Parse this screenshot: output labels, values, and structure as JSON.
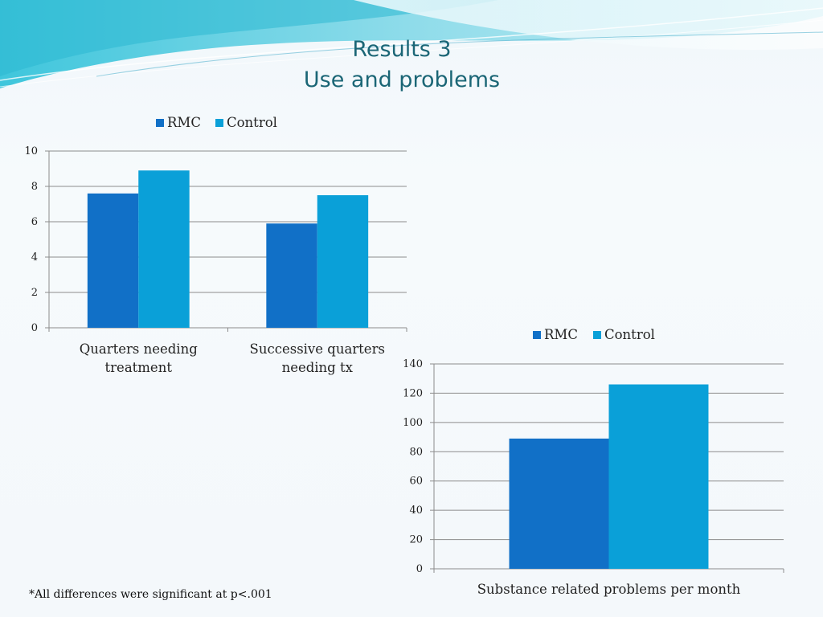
{
  "slide": {
    "title_line1": "Results 3",
    "title_line2": "Use and problems",
    "footnote": "*All differences were significant at p<.001"
  },
  "colors": {
    "rmc": "#1170c7",
    "control": "#0aa0d8",
    "title": "#1b6676",
    "grid": "#8c8c8c"
  },
  "chart_data": [
    {
      "type": "bar",
      "categories": [
        "Quarters needing treatment",
        "Successive quarters needing tx"
      ],
      "category_lines": [
        [
          "Quarters needing",
          "treatment"
        ],
        [
          "Successive quarters",
          "needing tx"
        ]
      ],
      "series": [
        {
          "name": "RMC",
          "values": [
            7.6,
            5.9
          ]
        },
        {
          "name": "Control",
          "values": [
            8.9,
            7.5
          ]
        }
      ],
      "ylim": [
        0,
        10
      ],
      "yticks": [
        0,
        2,
        4,
        6,
        8,
        10
      ],
      "grid": true,
      "legend": "top"
    },
    {
      "type": "bar",
      "categories": [
        "Substance related problems per month"
      ],
      "category_lines": [
        [
          "Substance related problems per month"
        ]
      ],
      "series": [
        {
          "name": "RMC",
          "values": [
            89
          ]
        },
        {
          "name": "Control",
          "values": [
            126
          ]
        }
      ],
      "ylim": [
        0,
        140
      ],
      "yticks": [
        0,
        20,
        40,
        60,
        80,
        100,
        120,
        140
      ],
      "grid": true,
      "legend": "top"
    }
  ]
}
